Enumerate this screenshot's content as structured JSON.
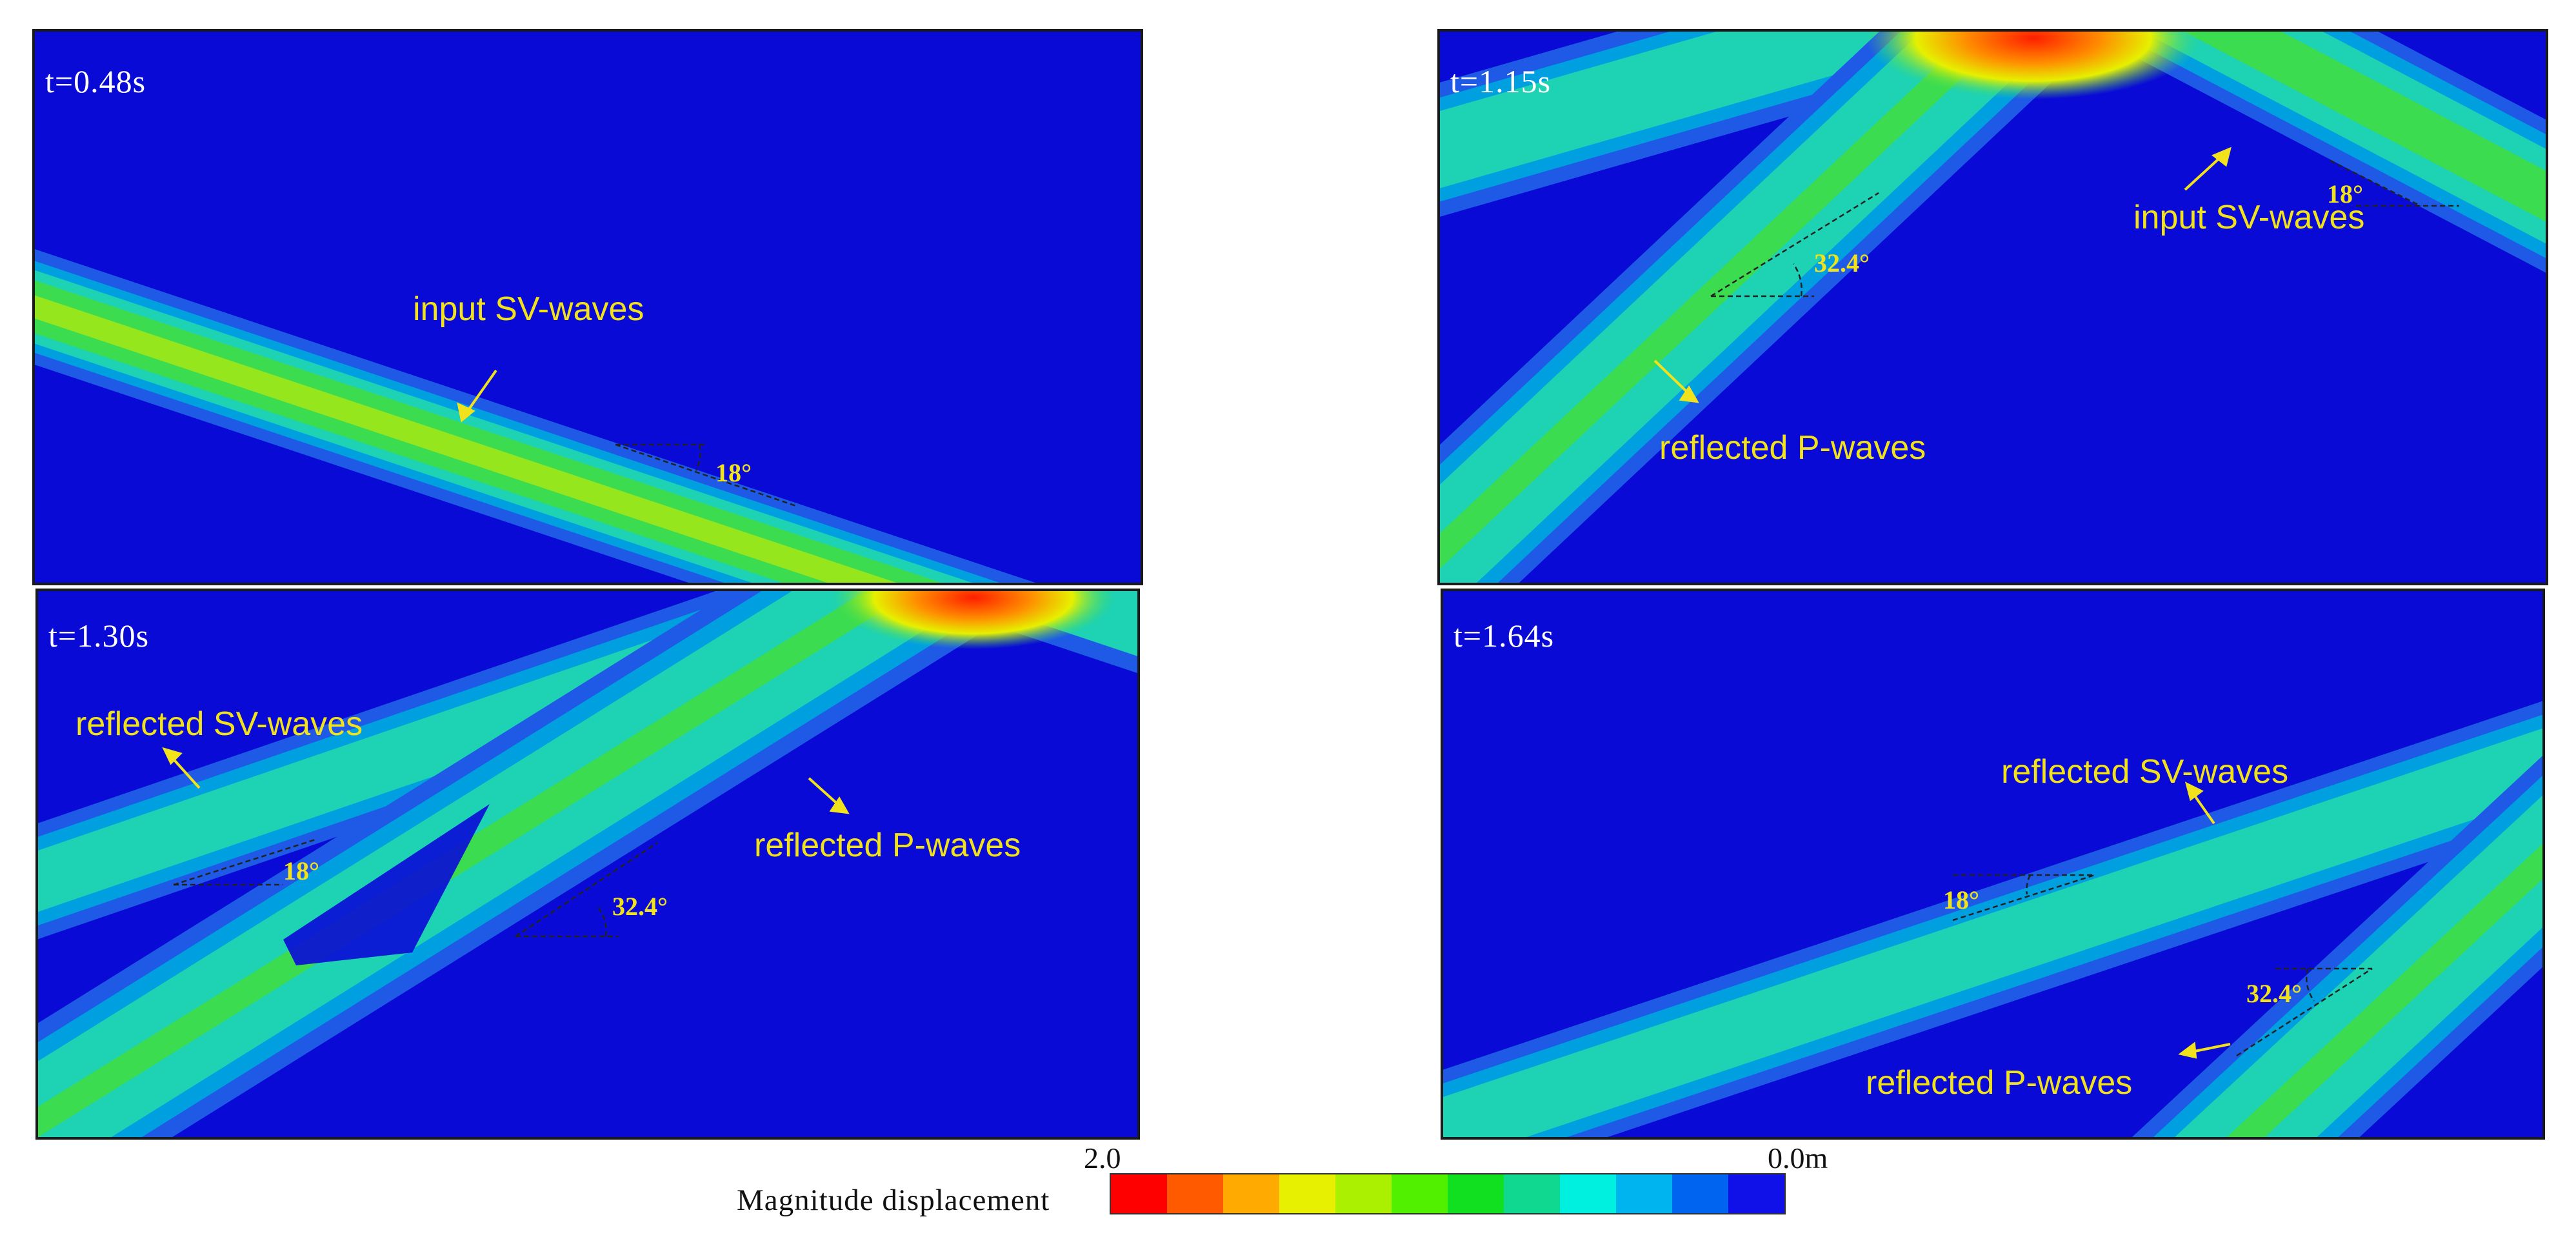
{
  "panels": [
    {
      "time_label": "t=0.48s",
      "labels": {
        "wave_a": "input SV-waves",
        "angle_a": "18°"
      }
    },
    {
      "time_label": "t=1.15s",
      "labels": {
        "wave_a": "input SV-waves",
        "angle_a": "18°",
        "wave_b": "reflected P-waves",
        "angle_b": "32.4°"
      }
    },
    {
      "time_label": "t=1.30s",
      "labels": {
        "wave_a": "reflected SV-waves",
        "angle_a": "18°",
        "wave_b": "reflected P-waves",
        "angle_b": "32.4°"
      }
    },
    {
      "time_label": "t=1.64s",
      "labels": {
        "wave_a": "reflected SV-waves",
        "angle_a": "18°",
        "wave_b": "reflected P-waves",
        "angle_b": "32.4°"
      }
    }
  ],
  "colorbar": {
    "title": "Magnitude displacement",
    "max_label": "2.0",
    "min_label": "0.0m",
    "colors": [
      "#ff0000",
      "#ff5a00",
      "#ffaa00",
      "#e6f000",
      "#aaf000",
      "#50f000",
      "#10e020",
      "#10d890",
      "#00f0e0",
      "#00b4f0",
      "#0064f0",
      "#1010e8"
    ]
  },
  "colors": {
    "background": "#0a0ad6",
    "band_outer": "#1e5ae6",
    "band_mid": "#00a0e0",
    "band_inner": "#1ed2b4",
    "band_core": "#3cdc50",
    "band_peak": "#96e61e",
    "hot_spot": "#ff1e00",
    "label_yellow": "#f2e21c"
  }
}
